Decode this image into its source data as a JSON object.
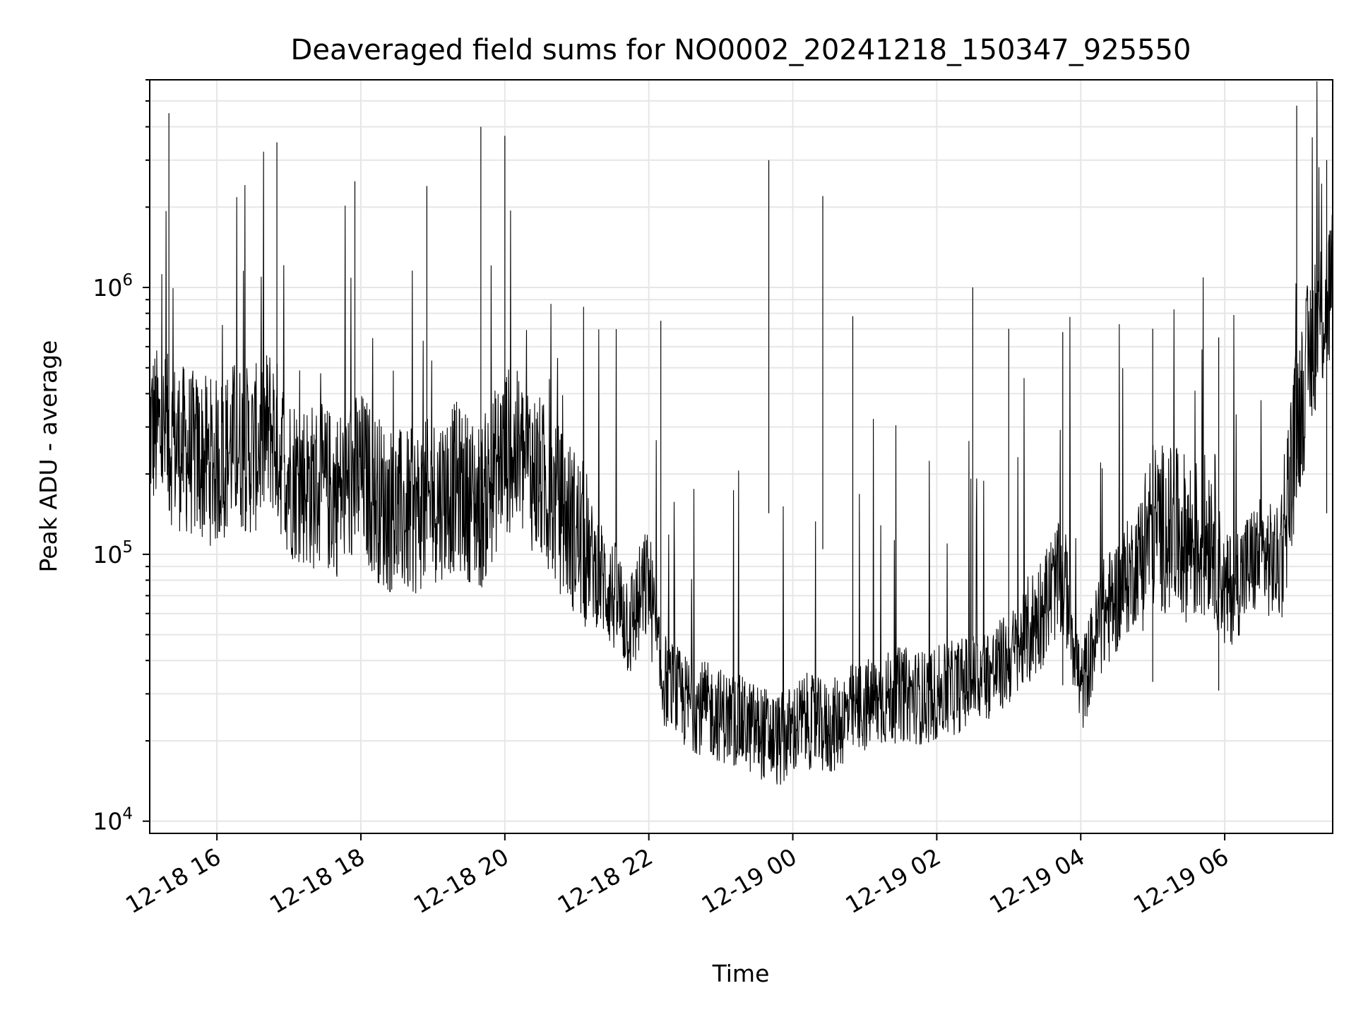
{
  "chart_data": {
    "type": "line",
    "title": "Deaveraged field sums for NO0002_20241218_150347_925550",
    "xlabel": "Time",
    "ylabel": "Peak ADU - average",
    "y_scale": "log",
    "ylim": [
      9000,
      6000000
    ],
    "y_ticks": [
      {
        "value": 10000,
        "base": "10",
        "exp": "4"
      },
      {
        "value": 100000,
        "base": "10",
        "exp": "5"
      },
      {
        "value": 1000000,
        "base": "10",
        "exp": "6"
      }
    ],
    "xlim": [
      "2024-12-18 15:04",
      "2024-12-19 07:30"
    ],
    "x_ticks": [
      "12-18 16",
      "12-18 18",
      "12-18 20",
      "12-18 22",
      "12-19 00",
      "12-19 02",
      "12-19 04",
      "12-19 06"
    ],
    "x_tick_times": [
      "2024-12-18 16:00",
      "2024-12-18 18:00",
      "2024-12-18 20:00",
      "2024-12-18 22:00",
      "2024-12-19 00:00",
      "2024-12-19 02:00",
      "2024-12-19 04:00",
      "2024-12-19 06:00"
    ],
    "grid": true,
    "line_color": "#000000",
    "grid_color": "#e6e6e6",
    "series": [
      {
        "x": [
          "2024-12-18 15:04",
          "2024-12-18 15:15",
          "2024-12-18 15:30",
          "2024-12-18 15:45",
          "2024-12-18 16:00",
          "2024-12-18 16:15",
          "2024-12-18 16:30",
          "2024-12-18 16:45",
          "2024-12-18 17:00",
          "2024-12-18 17:20",
          "2024-12-18 17:40",
          "2024-12-18 18:00",
          "2024-12-18 18:20",
          "2024-12-18 18:40",
          "2024-12-18 19:00",
          "2024-12-18 19:20",
          "2024-12-18 19:40",
          "2024-12-18 20:00",
          "2024-12-18 20:20",
          "2024-12-18 20:40",
          "2024-12-18 21:00",
          "2024-12-18 21:15",
          "2024-12-18 21:30",
          "2024-12-18 21:45",
          "2024-12-18 22:00",
          "2024-12-18 22:10",
          "2024-12-18 22:30",
          "2024-12-18 22:50",
          "2024-12-18 23:10",
          "2024-12-18 23:30",
          "2024-12-18 23:50",
          "2024-12-19 00:10",
          "2024-12-19 00:30",
          "2024-12-19 00:50",
          "2024-12-19 01:10",
          "2024-12-19 01:30",
          "2024-12-19 01:50",
          "2024-12-19 02:10",
          "2024-12-19 02:30",
          "2024-12-19 02:50",
          "2024-12-19 03:10",
          "2024-12-19 03:30",
          "2024-12-19 03:40",
          "2024-12-19 03:50",
          "2024-12-19 04:00",
          "2024-12-19 04:15",
          "2024-12-19 04:30",
          "2024-12-19 04:45",
          "2024-12-19 05:00",
          "2024-12-19 05:20",
          "2024-12-19 05:40",
          "2024-12-19 05:50",
          "2024-12-19 06:00",
          "2024-12-19 06:15",
          "2024-12-19 06:30",
          "2024-12-19 06:45",
          "2024-12-19 07:00",
          "2024-12-19 07:15",
          "2024-12-19 07:30"
        ],
        "y": [
          300000,
          280000,
          250000,
          230000,
          220000,
          260000,
          240000,
          300000,
          200000,
          180000,
          170000,
          200000,
          150000,
          140000,
          160000,
          180000,
          150000,
          250000,
          220000,
          160000,
          120000,
          90000,
          70000,
          55000,
          80000,
          35000,
          28000,
          26000,
          24000,
          22000,
          20000,
          24000,
          22000,
          26000,
          28000,
          30000,
          29000,
          31000,
          34000,
          37000,
          45000,
          65000,
          80000,
          70000,
          30000,
          55000,
          70000,
          90000,
          130000,
          120000,
          110000,
          130000,
          70000,
          85000,
          100000,
          90000,
          300000,
          700000,
          1000000
        ]
      }
    ],
    "spikes": [
      {
        "x": "2024-12-18 15:20",
        "y": 4500000
      },
      {
        "x": "2024-12-18 16:50",
        "y": 3500000
      },
      {
        "x": "2024-12-18 17:55",
        "y": 2500000
      },
      {
        "x": "2024-12-18 18:55",
        "y": 2400000
      },
      {
        "x": "2024-12-18 19:40",
        "y": 4000000
      },
      {
        "x": "2024-12-18 20:00",
        "y": 3700000
      },
      {
        "x": "2024-12-18 22:10",
        "y": 750000
      },
      {
        "x": "2024-12-18 23:40",
        "y": 3000000
      },
      {
        "x": "2024-12-19 00:25",
        "y": 2200000
      },
      {
        "x": "2024-12-19 00:50",
        "y": 780000
      },
      {
        "x": "2024-12-19 02:30",
        "y": 1000000
      },
      {
        "x": "2024-12-19 03:00",
        "y": 700000
      },
      {
        "x": "2024-12-19 03:45",
        "y": 680000
      },
      {
        "x": "2024-12-19 05:00",
        "y": 700000
      },
      {
        "x": "2024-12-19 05:55",
        "y": 650000
      },
      {
        "x": "2024-12-19 07:00",
        "y": 4800000
      },
      {
        "x": "2024-12-19 07:25",
        "y": 3000000
      }
    ]
  }
}
